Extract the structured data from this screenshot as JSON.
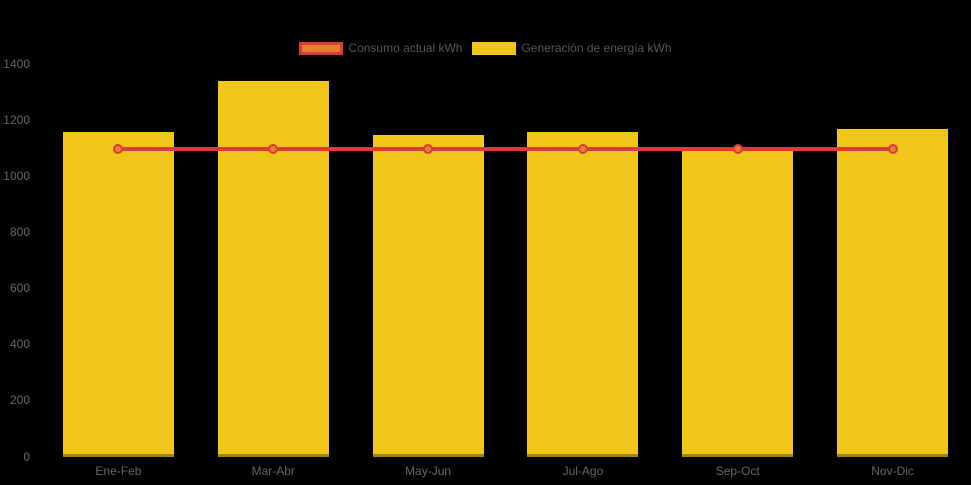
{
  "canvas": {
    "background": "#000000",
    "axis_text_color": "#666666",
    "legend_text_color": "#565656"
  },
  "chart_data": {
    "type": "bar",
    "title": "",
    "xlabel": "",
    "ylabel": "",
    "categories": [
      "Ene-Feb",
      "Mar-Abr",
      "May-Jun",
      "Jul-Ago",
      "Sep-Oct",
      "Nov-Dic"
    ],
    "series": [
      {
        "name": "Consumo actual kWh",
        "type": "line",
        "values": [
          1100,
          1100,
          1100,
          1100,
          1100,
          1100
        ],
        "line_color": "#D93E36",
        "point_fill": "#E87E33",
        "point_border": "#D93E36"
      },
      {
        "name": "Generación de energía kWh",
        "type": "bar",
        "values": [
          1160,
          1340,
          1150,
          1160,
          1090,
          1170
        ],
        "color": "#F0C61B"
      }
    ],
    "ylim": [
      0,
      1400
    ],
    "y_ticks": [
      0,
      200,
      400,
      600,
      800,
      1000,
      1200,
      1400
    ],
    "grid": false,
    "legend_position": "top-center",
    "background": "#000000"
  }
}
